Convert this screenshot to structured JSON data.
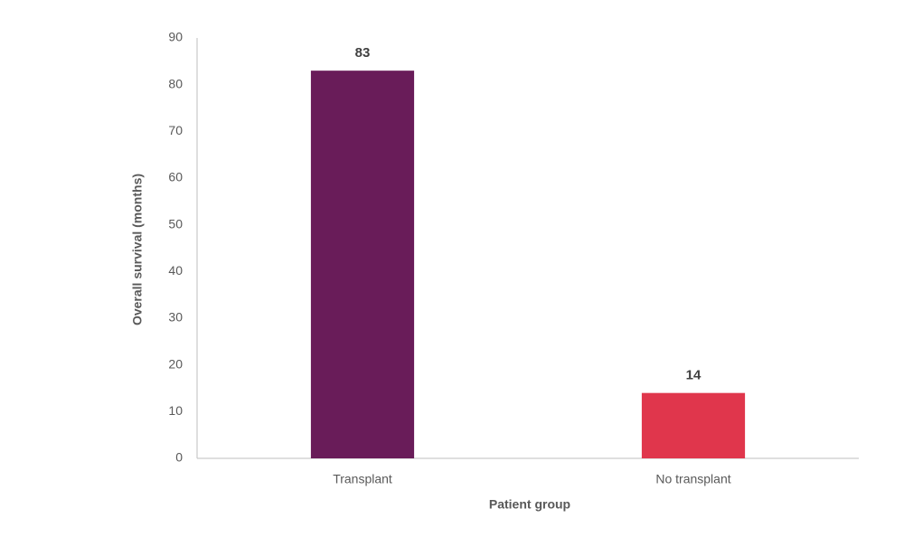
{
  "chart_data": {
    "type": "bar",
    "x_label": "Patient group",
    "y_label": "Overall survival (months)",
    "categories": [
      "Transplant",
      "No transplant"
    ],
    "values": [
      83,
      14
    ],
    "colors": [
      "#691c59",
      "#e0364c"
    ],
    "ylim": [
      0,
      90
    ],
    "yticks": [
      0,
      10,
      20,
      30,
      40,
      50,
      60,
      70,
      80,
      90
    ],
    "grid": false
  }
}
